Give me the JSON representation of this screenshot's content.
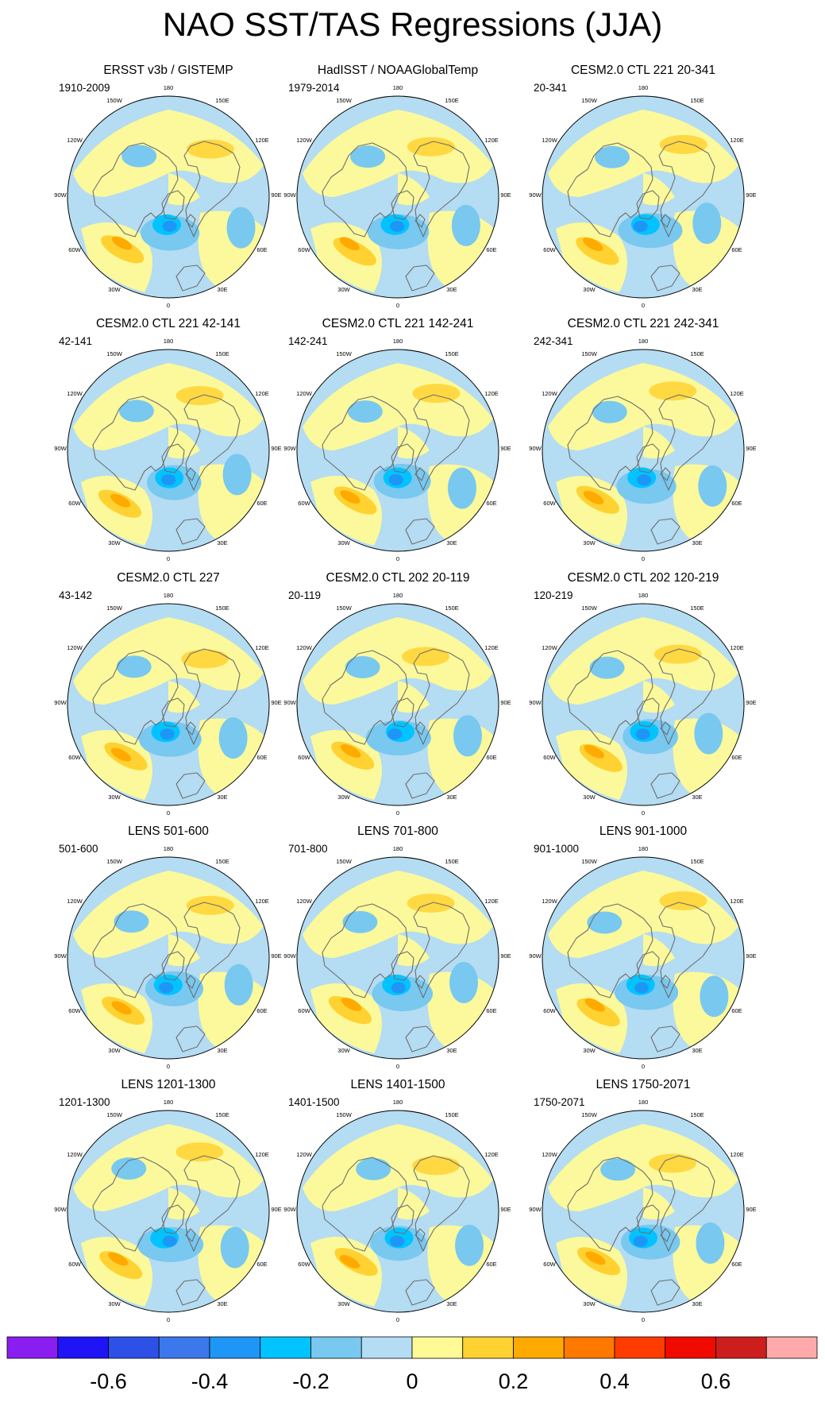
{
  "title": "NAO SST/TAS Regressions (JJA)",
  "lon_labels": [
    "180",
    "150E",
    "120E",
    "90E",
    "60E",
    "30E",
    "0",
    "30W",
    "60W",
    "90W",
    "120W",
    "150W"
  ],
  "panels": [
    {
      "title": "ERSST v3b / GISTEMP",
      "period": "1910-2009"
    },
    {
      "title": "HadISST / NOAAGlobalTemp",
      "period": "1979-2014"
    },
    {
      "title": "CESM2.0 CTL 221 20-341",
      "period": "20-341"
    },
    {
      "title": "CESM2.0 CTL 221 42-141",
      "period": "42-141"
    },
    {
      "title": "CESM2.0 CTL 221 142-241",
      "period": "142-241"
    },
    {
      "title": "CESM2.0 CTL 221 242-341",
      "period": "242-341"
    },
    {
      "title": "CESM2.0 CTL 227",
      "period": "43-142"
    },
    {
      "title": "CESM2.0 CTL 202 20-119",
      "period": "20-119"
    },
    {
      "title": "CESM2.0 CTL 202 120-219",
      "period": "120-219"
    },
    {
      "title": "LENS 501-600",
      "period": "501-600"
    },
    {
      "title": "LENS 701-800",
      "period": "701-800"
    },
    {
      "title": "LENS 901-1000",
      "period": "901-1000"
    },
    {
      "title": "LENS 1201-1300",
      "period": "1201-1300"
    },
    {
      "title": "LENS 1401-1500",
      "period": "1401-1500"
    },
    {
      "title": "LENS 1750-2071",
      "period": "1750-2071"
    }
  ],
  "colorbar": {
    "colors": [
      "#8a1ef0",
      "#1e14f5",
      "#2d50e6",
      "#3c78eb",
      "#1e96f5",
      "#00c3ff",
      "#78c8f0",
      "#b4dcf2",
      "#fffa96",
      "#ffd232",
      "#ffaa00",
      "#ff7800",
      "#ff3c00",
      "#f00a00",
      "#cd1e1e",
      "#ffaaaa"
    ],
    "labels": [
      "-0.6",
      "-0.4",
      "-0.2",
      "0",
      "0.2",
      "0.4",
      "0.6"
    ]
  }
}
